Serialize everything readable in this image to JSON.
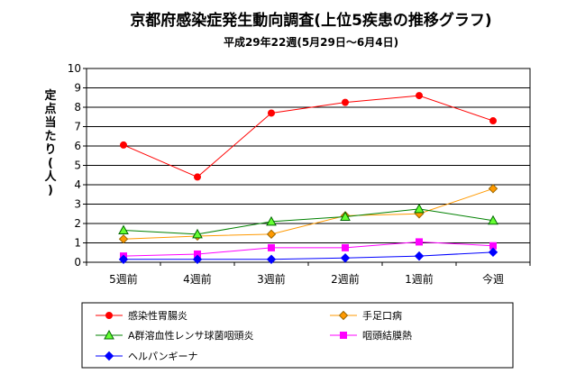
{
  "chart_data": {
    "type": "line",
    "title": "京都府感染症発生動向調査(上位5疾患の推移グラフ)",
    "subtitle": "平成29年22週(5月29日～6月4日)",
    "ylabel": "定点当たり(人)",
    "ylabel_chars": [
      "定",
      "点",
      "当",
      "た",
      "り",
      "(",
      "人",
      ")"
    ],
    "categories": [
      "5週前",
      "4週前",
      "3週前",
      "2週前",
      "1週前",
      "今週"
    ],
    "ylim": [
      0,
      10
    ],
    "yticks": [
      "0",
      "1",
      "2",
      "3",
      "4",
      "5",
      "6",
      "7",
      "8",
      "9",
      "10"
    ],
    "grid": true,
    "legend_position": "bottom",
    "series": [
      {
        "name": "感染性胃腸炎",
        "values": [
          6.05,
          4.4,
          7.7,
          8.25,
          8.6,
          7.3
        ],
        "color": "#ff0000",
        "marker": "circle",
        "marker_fill": "#ff0000"
      },
      {
        "name": "手足口病",
        "values": [
          1.2,
          1.35,
          1.45,
          2.4,
          2.5,
          3.8
        ],
        "color": "#ff9900",
        "marker": "diamond",
        "marker_fill": "#ff9900"
      },
      {
        "name": "A群溶血性レンサ球菌咽頭炎",
        "values": [
          1.65,
          1.45,
          2.1,
          2.35,
          2.75,
          2.15
        ],
        "color": "#008000",
        "marker": "triangle",
        "marker_fill": "#66ff33"
      },
      {
        "name": "咽頭結膜熱",
        "values": [
          0.32,
          0.42,
          0.75,
          0.75,
          1.05,
          0.85
        ],
        "color": "#ff00ff",
        "marker": "square",
        "marker_fill": "#ff00ff"
      },
      {
        "name": "ヘルパンギーナ",
        "values": [
          0.15,
          0.15,
          0.15,
          0.22,
          0.32,
          0.52
        ],
        "color": "#0000ff",
        "marker": "diamond",
        "marker_fill": "#0000ff"
      }
    ]
  }
}
